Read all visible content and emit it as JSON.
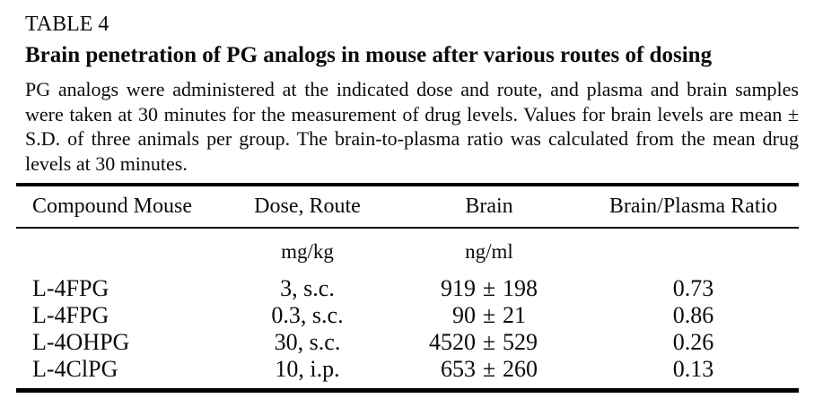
{
  "page": {
    "table_label": "TABLE 4",
    "title": "Brain penetration of PG analogs in mouse after various routes of dosing",
    "description": "PG analogs were administered at the indicated dose and route, and plasma and brain samples were taken at 30 minutes for the measurement of drug levels. Values for brain levels are mean ± S.D. of three animals per group. The brain-to-plasma ratio was calculated from the mean drug levels at 30 minutes."
  },
  "table": {
    "columns": [
      "Compound Mouse",
      "Dose, Route",
      "Brain",
      "Brain/Plasma Ratio"
    ],
    "units": {
      "dose": "mg/kg",
      "brain": "ng/ml"
    },
    "plus_minus": "±",
    "rows": [
      {
        "compound": "L-4FPG",
        "dose_route": "3, s.c.",
        "brain_mean": "919",
        "brain_sd": "198",
        "ratio": "0.73"
      },
      {
        "compound": "L-4FPG",
        "dose_route": "0.3, s.c.",
        "brain_mean": "90",
        "brain_sd": "21",
        "ratio": "0.86"
      },
      {
        "compound": "L-4OHPG",
        "dose_route": "30, s.c.",
        "brain_mean": "4520",
        "brain_sd": "529",
        "ratio": "0.26"
      },
      {
        "compound": "L-4ClPG",
        "dose_route": "10, i.p.",
        "brain_mean": "653",
        "brain_sd": "260",
        "ratio": "0.13"
      }
    ]
  },
  "colors": {
    "text": "#0b0b0b",
    "rule": "#000000",
    "background": "#ffffff"
  }
}
